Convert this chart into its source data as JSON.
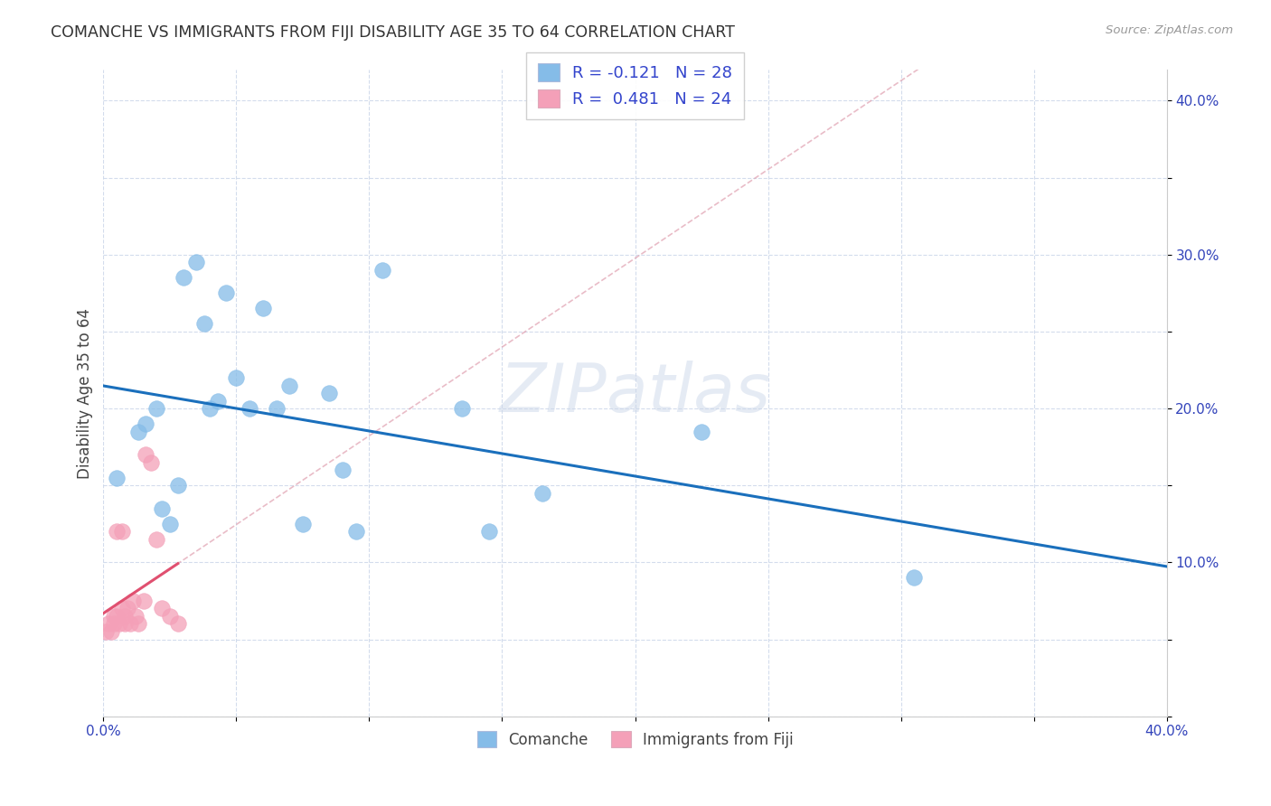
{
  "title": "COMANCHE VS IMMIGRANTS FROM FIJI DISABILITY AGE 35 TO 64 CORRELATION CHART",
  "source": "Source: ZipAtlas.com",
  "ylabel": "Disability Age 35 to 64",
  "legend_label1": "Comanche",
  "legend_label2": "Immigrants from Fiji",
  "r1": -0.121,
  "n1": 28,
  "r2": 0.481,
  "n2": 24,
  "xlim": [
    0.0,
    0.4
  ],
  "ylim": [
    0.0,
    0.42
  ],
  "xticks": [
    0.0,
    0.05,
    0.1,
    0.15,
    0.2,
    0.25,
    0.3,
    0.35,
    0.4
  ],
  "yticks": [
    0.0,
    0.05,
    0.1,
    0.15,
    0.2,
    0.25,
    0.3,
    0.35,
    0.4
  ],
  "xtick_labels": [
    "0.0%",
    "",
    "",
    "",
    "",
    "",
    "",
    "",
    "40.0%"
  ],
  "ytick_labels": [
    "",
    "",
    "10.0%",
    "",
    "20.0%",
    "",
    "30.0%",
    "",
    "40.0%"
  ],
  "color1": "#85bce8",
  "color2": "#f4a0b8",
  "line_color1": "#1a6fbc",
  "line_color2": "#e05070",
  "diag_color": "#e0a0b0",
  "watermark": "ZIPatlas",
  "comanche_x": [
    0.005,
    0.013,
    0.016,
    0.02,
    0.022,
    0.025,
    0.028,
    0.03,
    0.035,
    0.038,
    0.04,
    0.043,
    0.046,
    0.05,
    0.055,
    0.06,
    0.065,
    0.07,
    0.075,
    0.085,
    0.09,
    0.095,
    0.105,
    0.135,
    0.145,
    0.165,
    0.225,
    0.305
  ],
  "comanche_y": [
    0.155,
    0.185,
    0.19,
    0.2,
    0.135,
    0.125,
    0.15,
    0.285,
    0.295,
    0.255,
    0.2,
    0.205,
    0.275,
    0.22,
    0.2,
    0.265,
    0.2,
    0.215,
    0.125,
    0.21,
    0.16,
    0.12,
    0.29,
    0.2,
    0.12,
    0.145,
    0.185,
    0.09
  ],
  "fiji_x": [
    0.001,
    0.002,
    0.003,
    0.004,
    0.004,
    0.005,
    0.005,
    0.006,
    0.007,
    0.007,
    0.008,
    0.008,
    0.009,
    0.01,
    0.011,
    0.012,
    0.013,
    0.015,
    0.016,
    0.018,
    0.02,
    0.022,
    0.025,
    0.028
  ],
  "fiji_y": [
    0.055,
    0.06,
    0.055,
    0.06,
    0.065,
    0.065,
    0.12,
    0.06,
    0.07,
    0.12,
    0.06,
    0.065,
    0.07,
    0.06,
    0.075,
    0.065,
    0.06,
    0.075,
    0.17,
    0.165,
    0.115,
    0.07,
    0.065,
    0.06
  ]
}
